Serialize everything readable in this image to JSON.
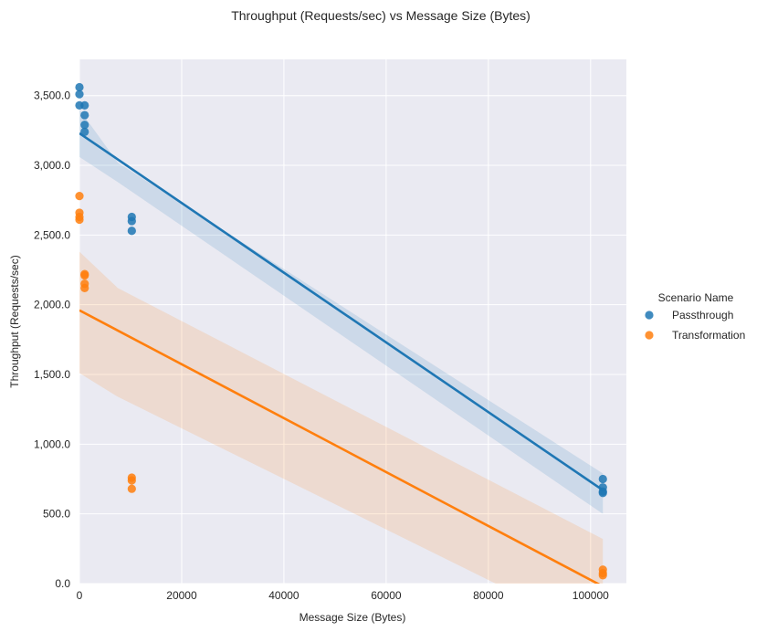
{
  "chart_data": {
    "type": "scatter",
    "title": "Throughput (Requests/sec) vs Message Size (Bytes)",
    "xlabel": "Message Size (Bytes)",
    "ylabel": "Throughput (Requests/sec)",
    "xlim": [
      0,
      107000
    ],
    "ylim": [
      0,
      3760
    ],
    "x_ticks": [
      0,
      20000,
      40000,
      60000,
      80000,
      100000
    ],
    "x_tick_labels": [
      "0",
      "20000",
      "40000",
      "60000",
      "80000",
      "100000"
    ],
    "y_ticks": [
      0,
      500,
      1000,
      1500,
      2000,
      2500,
      3000,
      3500
    ],
    "y_tick_labels": [
      "0.0",
      "500.0",
      "1,000.0",
      "1,500.0",
      "2,000.0",
      "2,500.0",
      "3,000.0",
      "3,500.0"
    ],
    "grid": true,
    "legend": {
      "title": "Scenario Name",
      "placement": "right"
    },
    "series": [
      {
        "name": "Passthrough",
        "color": "#1f77b4",
        "points": [
          [
            0,
            3560
          ],
          [
            0,
            3510
          ],
          [
            0,
            3430
          ],
          [
            1024,
            3430
          ],
          [
            1024,
            3360
          ],
          [
            1024,
            3290
          ],
          [
            1024,
            3240
          ],
          [
            10240,
            2630
          ],
          [
            10240,
            2600
          ],
          [
            10240,
            2530
          ],
          [
            102400,
            750
          ],
          [
            102400,
            690
          ],
          [
            102400,
            660
          ],
          [
            102400,
            650
          ]
        ],
        "fit": {
          "x": [
            0,
            102400
          ],
          "y": [
            3230,
            670
          ]
        },
        "ci_upper": [
          [
            0,
            3400
          ],
          [
            7500,
            3020
          ],
          [
            102400,
            790
          ]
        ],
        "ci_lower": [
          [
            0,
            3060
          ],
          [
            7500,
            2880
          ],
          [
            102400,
            500
          ]
        ]
      },
      {
        "name": "Transformation",
        "color": "#ff7f0e",
        "points": [
          [
            0,
            2780
          ],
          [
            0,
            2660
          ],
          [
            0,
            2630
          ],
          [
            0,
            2610
          ],
          [
            1024,
            2220
          ],
          [
            1024,
            2210
          ],
          [
            1024,
            2150
          ],
          [
            1024,
            2120
          ],
          [
            10240,
            760
          ],
          [
            10240,
            740
          ],
          [
            10240,
            680
          ],
          [
            102400,
            100
          ],
          [
            102400,
            75
          ],
          [
            102400,
            60
          ]
        ],
        "fit": {
          "x": [
            0,
            102400
          ],
          "y": [
            1960,
            -20
          ]
        },
        "ci_upper": [
          [
            0,
            2380
          ],
          [
            7500,
            2120
          ],
          [
            102400,
            320
          ]
        ],
        "ci_lower": [
          [
            0,
            1510
          ],
          [
            7500,
            1340
          ],
          [
            102400,
            -380
          ]
        ]
      }
    ]
  }
}
